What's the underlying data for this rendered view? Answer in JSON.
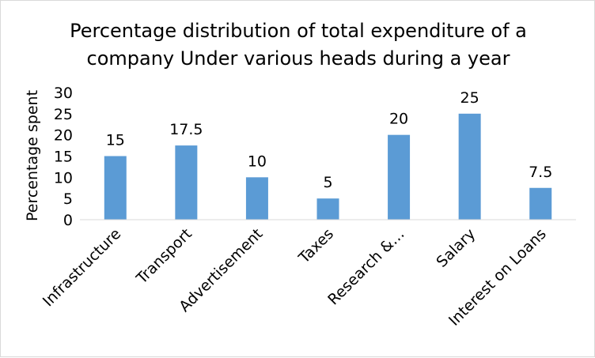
{
  "chart_data": {
    "type": "bar",
    "title_lines": [
      "Percentage distribution of total expenditure of a",
      "company Under various heads during a year"
    ],
    "xlabel": "",
    "ylabel": "Percentage spent",
    "categories": [
      "Infrastructure",
      "Transport",
      "Advertisement",
      "Taxes",
      "Research &…",
      "Salary",
      "Interest on Loans"
    ],
    "values": [
      15,
      17.5,
      10,
      5,
      20,
      25,
      7.5
    ],
    "data_labels": [
      "15",
      "17.5",
      "10",
      "5",
      "20",
      "25",
      "7.5"
    ],
    "ylim": [
      0,
      30
    ],
    "yticks": [
      0,
      5,
      10,
      15,
      20,
      25,
      30
    ],
    "ytick_labels": [
      "0",
      "5",
      "10",
      "15",
      "20",
      "25",
      "30"
    ],
    "grid": false,
    "legend": "none",
    "bar_color": "#5B9BD5"
  }
}
